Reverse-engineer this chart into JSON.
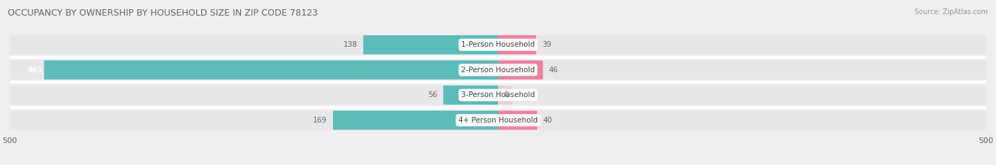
{
  "title": "OCCUPANCY BY OWNERSHIP BY HOUSEHOLD SIZE IN ZIP CODE 78123",
  "source": "Source: ZipAtlas.com",
  "categories": [
    "1-Person Household",
    "2-Person Household",
    "3-Person Household",
    "4+ Person Household"
  ],
  "owner_values": [
    138,
    465,
    56,
    169
  ],
  "renter_values": [
    39,
    46,
    0,
    40
  ],
  "owner_color": "#5bbcb8",
  "renter_color": "#f07fa0",
  "renter_color_light": "#f5b8cc",
  "axis_max": 500,
  "bg_color": "#f0eef0",
  "bar_bg_color": "#e8e6e8",
  "label_color": "#666666",
  "title_color": "#666666",
  "bar_height": 0.72,
  "figsize": [
    14.06,
    2.33
  ],
  "dpi": 100
}
